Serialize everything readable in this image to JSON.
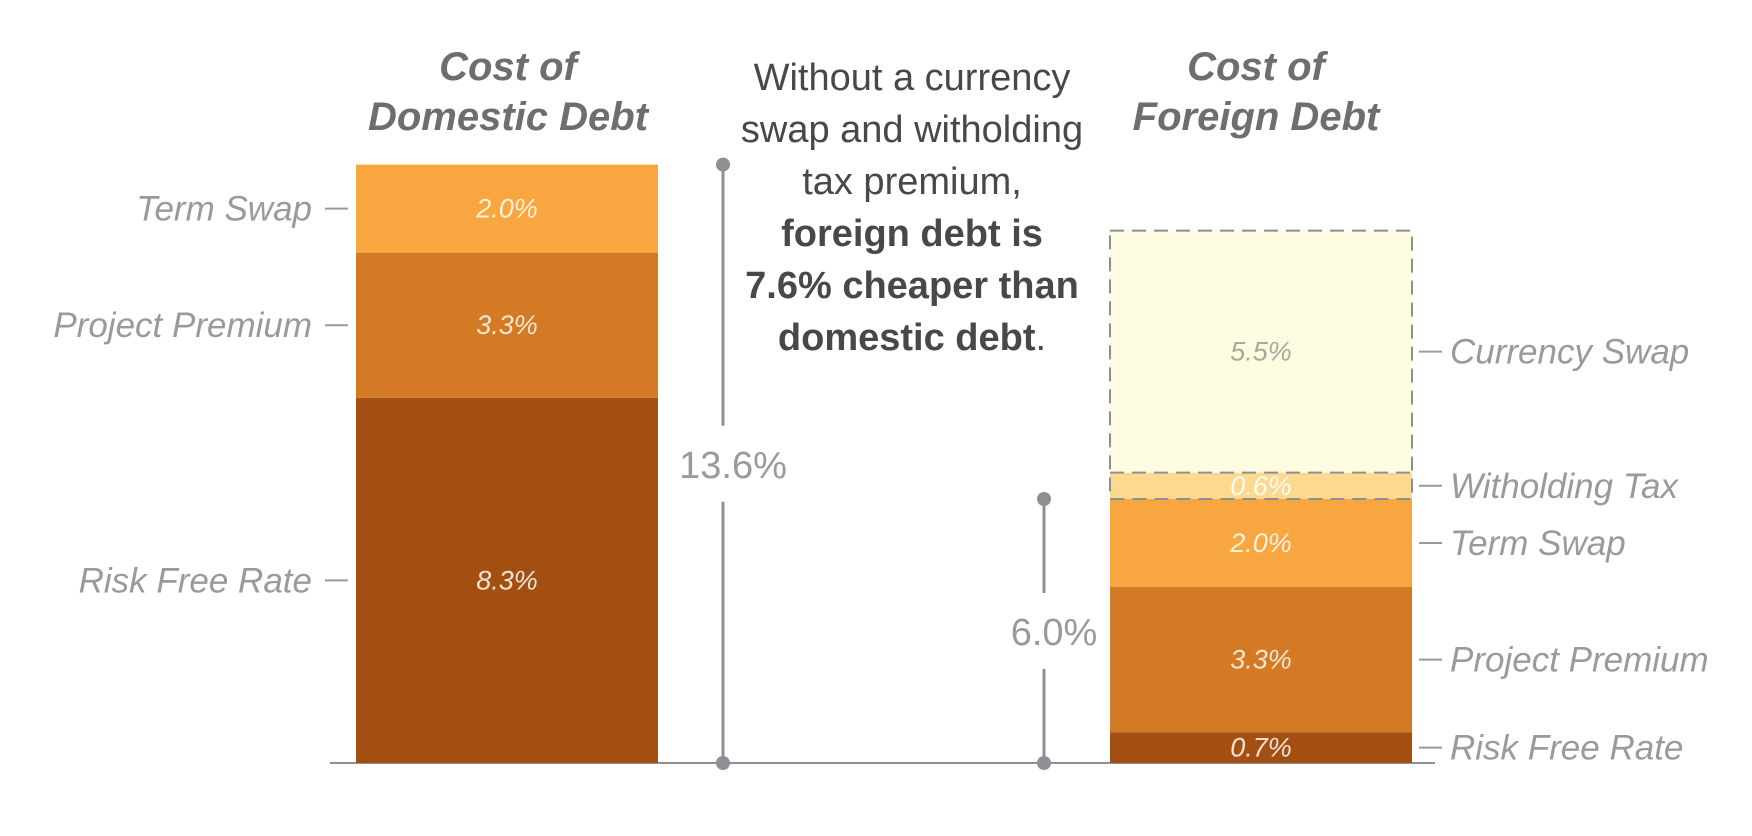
{
  "chart_data": {
    "type": "bar",
    "stacked": true,
    "unit": "%",
    "bars": [
      {
        "title_lines": [
          "Cost of",
          "Domestic Debt"
        ],
        "total_label": "13.6%",
        "segments": [
          {
            "name": "Risk Free Rate",
            "value": 8.3,
            "label": "8.3%",
            "color": "#a34f11",
            "text_color": "#f0e3d6"
          },
          {
            "name": "Project Premium",
            "value": 3.3,
            "label": "3.3%",
            "color": "#d47a25",
            "text_color": "#f7e6d2"
          },
          {
            "name": "Term Swap",
            "value": 2.0,
            "label": "2.0%",
            "color": "#f8a640",
            "text_color": "#fdf0dc"
          }
        ]
      },
      {
        "title_lines": [
          "Cost of",
          "Foreign Debt"
        ],
        "total_label": "6.0%",
        "segments": [
          {
            "name": "Risk Free Rate",
            "value": 0.7,
            "label": "0.7%",
            "color": "#a34f11",
            "text_color": "#f0e3d6"
          },
          {
            "name": "Project Premium",
            "value": 3.3,
            "label": "3.3%",
            "color": "#d47a25",
            "text_color": "#f7e6d2"
          },
          {
            "name": "Term Swap",
            "value": 2.0,
            "label": "2.0%",
            "color": "#f8a640",
            "text_color": "#fdf0dc"
          },
          {
            "name": "Witholding Tax",
            "value": 0.6,
            "label": "0.6%",
            "color": "#fcd98e",
            "text_color": "#fffaf0",
            "dashed": true
          },
          {
            "name": "Currency Swap",
            "value": 5.5,
            "label": "5.5%",
            "color": "#fefce0",
            "text_color": "#a8a89c",
            "dashed": true
          }
        ]
      }
    ],
    "annotation": {
      "lines": [
        [
          {
            "text": "Without a currency",
            "bold": false
          }
        ],
        [
          {
            "text": "swap and witholding",
            "bold": false
          }
        ],
        [
          {
            "text": "tax premium,",
            "bold": false
          }
        ],
        [
          {
            "text": "foreign debt is",
            "bold": true
          }
        ],
        [
          {
            "text": "7.6% cheaper than",
            "bold": true
          }
        ],
        [
          {
            "text": "domestic debt",
            "bold": true
          },
          {
            "text": ".",
            "bold": false
          }
        ]
      ]
    },
    "colors": {
      "axis": "#8f8f93",
      "label_text": "#9a9a9e",
      "title_text": "#6e6e70",
      "dash": "#8f8f93"
    }
  }
}
